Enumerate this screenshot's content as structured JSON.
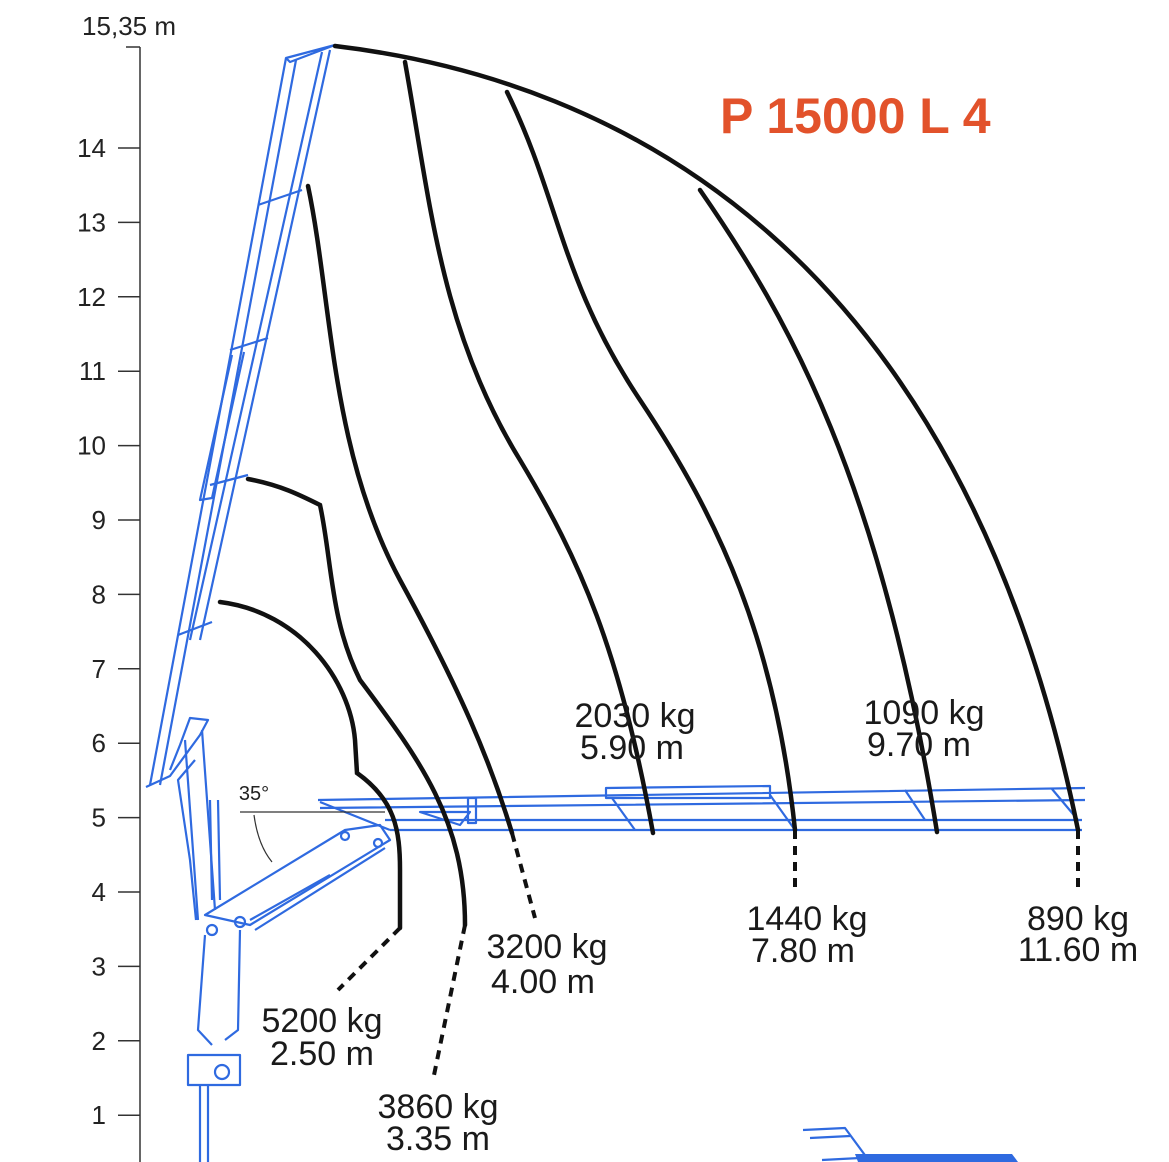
{
  "title": "P 15000 L 4",
  "title_color": "#e2522b",
  "crane_color": "#2f6ae0",
  "axis": {
    "top_label": "15,35 m",
    "ticks": [
      "14",
      "13",
      "12",
      "11",
      "10",
      "9",
      "8",
      "7",
      "6",
      "5",
      "4",
      "3",
      "2",
      "1"
    ]
  },
  "angle_label": "35°",
  "loads": [
    {
      "weight": "5200 kg",
      "reach": "2.50 m"
    },
    {
      "weight": "3860 kg",
      "reach": "3.35 m"
    },
    {
      "weight": "3200 kg",
      "reach": "4.00 m"
    },
    {
      "weight": "2030 kg",
      "reach": "5.90 m"
    },
    {
      "weight": "1440 kg",
      "reach": "7.80 m"
    },
    {
      "weight": "1090 kg",
      "reach": "9.70 m"
    },
    {
      "weight": "890 kg",
      "reach": "11.60 m"
    }
  ]
}
